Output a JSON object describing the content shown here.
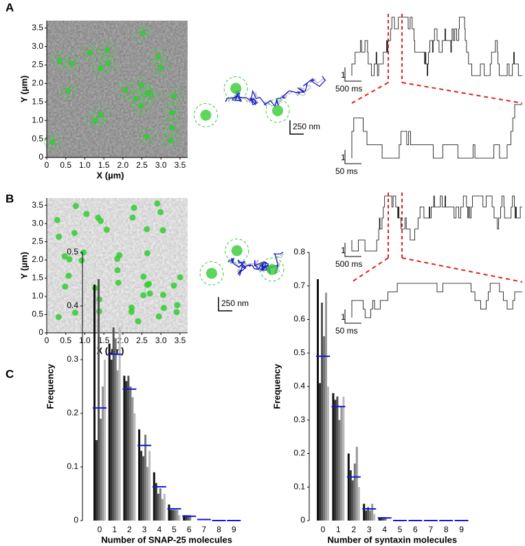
{
  "panels": [
    {
      "label": "A",
      "image": {
        "xlabel": "X (µm)",
        "ylabel": "Y (µm)",
        "xlim": [
          0,
          3.7
        ],
        "ylim": [
          0,
          3.7
        ],
        "xticks": [
          0,
          0.5,
          {
            "value": 1,
            "label": "1.0"
          },
          1.5,
          {
            "value": 2,
            "label": "2.0"
          },
          2.5,
          {
            "value": 3,
            "label": "3.0"
          },
          3.5
        ],
        "yticks": [
          0,
          0.5,
          {
            "value": 1,
            "label": "1.0"
          },
          1.5,
          {
            "value": 2,
            "label": "2.0"
          },
          2.5,
          {
            "value": 3,
            "label": "3.0"
          },
          3.5
        ]
      },
      "trajectory_scale": "250 nm",
      "trace": {
        "amplitude": "1",
        "time": "500 ms"
      },
      "zoom": {
        "amplitude": "1",
        "time": "50 ms"
      }
    },
    {
      "label": "B",
      "image": {
        "xlabel": "X (µm)",
        "ylabel": "Y (µm)",
        "xlim": [
          0,
          3.7
        ],
        "ylim": [
          0,
          3.7
        ],
        "xticks": [
          0,
          0.5,
          {
            "value": 1,
            "label": "1.0"
          },
          1.5,
          {
            "value": 2,
            "label": "2.0"
          },
          2.5,
          {
            "value": 3,
            "label": "3.0"
          },
          3.5
        ],
        "yticks": [
          0,
          0.5,
          {
            "value": 1,
            "label": "1.0"
          },
          1.5,
          {
            "value": 2,
            "label": "2.0"
          },
          2.5,
          {
            "value": 3,
            "label": "3.0"
          },
          3.5
        ]
      },
      "trajectory_scale": "250 nm",
      "trace": {
        "amplitude": "1",
        "time": "500 ms"
      },
      "zoom": {
        "amplitude": "1",
        "time": "50 ms"
      }
    }
  ],
  "chart_label": "C",
  "chart_data": [
    {
      "type": "bar",
      "xlabel": "Number of SNAP-25 molecules",
      "ylabel": "Frequency",
      "categories": [
        "0",
        "1",
        "2",
        "3",
        "4",
        "5",
        "6",
        "7",
        "8",
        "9"
      ],
      "ylim": [
        0,
        0.5
      ],
      "yticks": [
        0,
        0.1,
        0.2,
        0.3,
        0.4,
        0.5
      ],
      "series": [
        {
          "color": "#111111",
          "values": [
            0.44,
            0.33,
            0.27,
            0.17,
            0.09,
            0.03,
            0.01,
            0,
            0,
            0
          ]
        },
        {
          "color": "#333333",
          "values": [
            0.15,
            0.3,
            0.26,
            0.13,
            0.07,
            0.02,
            0.01,
            0,
            0,
            0
          ]
        },
        {
          "color": "#555555",
          "values": [
            0.45,
            0.36,
            0.27,
            0.12,
            0.05,
            0.02,
            0.01,
            0,
            0,
            0
          ]
        },
        {
          "color": "#777777",
          "values": [
            0.19,
            0.34,
            0.25,
            0.16,
            0.06,
            0.02,
            0.01,
            0,
            0,
            0
          ]
        },
        {
          "color": "#999999",
          "values": [
            0.25,
            0.28,
            0.23,
            0.1,
            0.04,
            0.02,
            0,
            0,
            0,
            0
          ]
        },
        {
          "color": "#bbbbbb",
          "values": [
            0.3,
            0.36,
            0.2,
            0.13,
            0.05,
            0.01,
            0,
            0,
            0,
            0
          ]
        }
      ],
      "mean": {
        "color": "#1414d8",
        "values": [
          0.21,
          0.31,
          0.245,
          0.14,
          0.063,
          0.022,
          0.008,
          0.002,
          0,
          0
        ]
      }
    },
    {
      "type": "bar",
      "xlabel": "Number of syntaxin molecules",
      "ylabel": "Frequency",
      "categories": [
        "0",
        "1",
        "2",
        "3",
        "4",
        "5",
        "6",
        "7",
        "8",
        "9"
      ],
      "ylim": [
        0,
        0.8
      ],
      "yticks": [
        0,
        0.1,
        0.2,
        0.3,
        0.4,
        0.5,
        0.6,
        0.7,
        0.8
      ],
      "series": [
        {
          "color": "#111111",
          "values": [
            0.72,
            0.38,
            0.2,
            0.05,
            0.01,
            0,
            0,
            0,
            0,
            0
          ]
        },
        {
          "color": "#333333",
          "values": [
            0.41,
            0.36,
            0.15,
            0.03,
            0.01,
            0,
            0,
            0,
            0,
            0
          ]
        },
        {
          "color": "#555555",
          "values": [
            0.65,
            0.37,
            0.12,
            0.04,
            0.01,
            0,
            0,
            0,
            0,
            0
          ]
        },
        {
          "color": "#777777",
          "values": [
            0.55,
            0.3,
            0.17,
            0.03,
            0.01,
            0,
            0,
            0,
            0,
            0
          ]
        },
        {
          "color": "#999999",
          "values": [
            0.68,
            0.34,
            0.22,
            0.05,
            0,
            0,
            0,
            0,
            0,
            0
          ]
        },
        {
          "color": "#bbbbbb",
          "values": [
            0.4,
            0.37,
            0.1,
            0.02,
            0,
            0,
            0,
            0,
            0,
            0
          ]
        }
      ],
      "mean": {
        "color": "#1414d8",
        "values": [
          0.49,
          0.34,
          0.13,
          0.035,
          0.008,
          0,
          0,
          0,
          0,
          0
        ]
      }
    }
  ]
}
